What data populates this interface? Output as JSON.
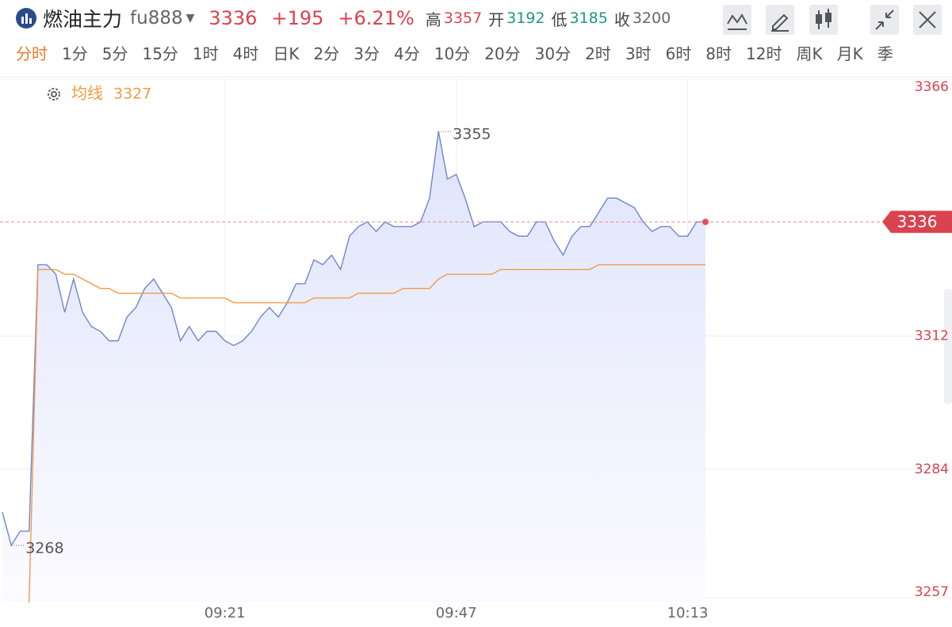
{
  "header": {
    "name": "燃油主力",
    "code": "fu888",
    "price": 3336,
    "change": "+195",
    "change_pct": "+6.21%",
    "stats": [
      {
        "label": "高",
        "value": 3357
      },
      {
        "label": "开",
        "value": 3192
      },
      {
        "label": "低",
        "value": 3185
      },
      {
        "label": "收",
        "value": 3200
      }
    ]
  },
  "tabs": [
    "分时",
    "1分",
    "5分",
    "15分",
    "1时",
    "4时",
    "日K",
    "2分",
    "3分",
    "4分",
    "10分",
    "20分",
    "30分",
    "2时",
    "3时",
    "6时",
    "8时",
    "12时",
    "周K",
    "月K",
    "季"
  ],
  "chart_data": {
    "type": "line",
    "categories": [
      null,
      null,
      null,
      null,
      null,
      null,
      null,
      null,
      null,
      null,
      null,
      null,
      null,
      null,
      null,
      null,
      null,
      null,
      null,
      null,
      null,
      null,
      null,
      null,
      null,
      "09:21",
      null,
      null,
      null,
      null,
      null,
      null,
      null,
      null,
      null,
      null,
      null,
      null,
      null,
      null,
      null,
      null,
      null,
      null,
      null,
      null,
      null,
      null,
      null,
      null,
      null,
      "09:47",
      null,
      null,
      null,
      null,
      null,
      null,
      null,
      null,
      null,
      null,
      null,
      null,
      null,
      null,
      null,
      null,
      null,
      null,
      null,
      null,
      null,
      null,
      null,
      null,
      null,
      "10:13",
      null,
      null
    ],
    "series": [
      {
        "color": "#6f84cf",
        "values": [
          3275,
          3268,
          3271,
          3271,
          3327,
          3327,
          3325,
          3317,
          3324,
          3317,
          3314,
          3313,
          3311,
          3311,
          3316,
          3318,
          3322,
          3324,
          3321,
          3318,
          3311,
          3314,
          3311,
          3313,
          3313,
          3311,
          3310,
          3311,
          3313,
          3316,
          3318,
          3316,
          3319,
          3323,
          3323,
          3328,
          3327,
          3329,
          3326,
          3333,
          3335,
          3336,
          3334,
          3336,
          3335,
          3335,
          3335,
          3336,
          3341,
          3355,
          3345,
          3346,
          3341,
          3335,
          3336,
          3336,
          3336,
          3334,
          3333,
          3333,
          3336,
          3336,
          3332,
          3329,
          3333,
          3335,
          3335,
          3338,
          3341,
          3341,
          3340,
          3339,
          3336,
          3334,
          3335,
          3335,
          3333,
          3333,
          3336,
          3336
        ]
      },
      {
        "name": "均线",
        "color": "#f29a44",
        "values": [
          null,
          null,
          null,
          3256,
          3326,
          3326,
          3326,
          3325,
          3325,
          3324,
          3323,
          3322,
          3322,
          3321,
          3321,
          3321,
          3321,
          3321,
          3321,
          3321,
          3320,
          3320,
          3320,
          3320,
          3320,
          3320,
          3319,
          3319,
          3319,
          3319,
          3319,
          3319,
          3319,
          3319,
          3319,
          3320,
          3320,
          3320,
          3320,
          3320,
          3321,
          3321,
          3321,
          3321,
          3321,
          3322,
          3322,
          3322,
          3322,
          3324,
          3325,
          3325,
          3325,
          3325,
          3325,
          3325,
          3326,
          3326,
          3326,
          3326,
          3326,
          3326,
          3326,
          3326,
          3326,
          3326,
          3326,
          3327,
          3327,
          3327,
          3327,
          3327,
          3327,
          3327,
          3327,
          3327,
          3327,
          3327,
          3327,
          3327
        ]
      }
    ],
    "ylim": [
      3257,
      3366
    ],
    "yticks": [
      3257,
      3284,
      3312,
      3366
    ],
    "grid": true
  }
}
